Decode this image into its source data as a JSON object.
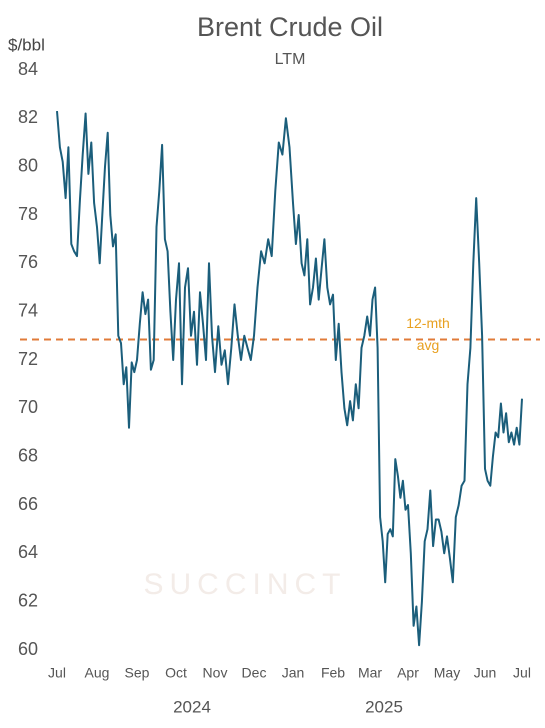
{
  "chart_data": {
    "type": "line",
    "title": "Brent Crude Oil",
    "subtitle": "LTM",
    "y_axis_label": "$/bbl",
    "watermark": "SUCCINCT",
    "categories": [
      "Jul",
      null,
      null,
      null,
      null,
      null,
      null,
      null,
      null,
      null,
      null,
      null,
      null,
      null,
      "Aug",
      null,
      null,
      null,
      null,
      null,
      null,
      null,
      null,
      null,
      null,
      null,
      null,
      null,
      null,
      "Sep",
      null,
      null,
      null,
      null,
      null,
      null,
      null,
      null,
      null,
      null,
      null,
      null,
      null,
      "Oct",
      null,
      null,
      null,
      null,
      null,
      null,
      null,
      null,
      null,
      null,
      null,
      null,
      "Nov",
      null,
      null,
      null,
      null,
      null,
      null,
      null,
      null,
      null,
      null,
      null,
      "Dec",
      null,
      null,
      null,
      null,
      null,
      null,
      null,
      null,
      null,
      null,
      "Jan",
      null,
      null,
      null,
      null,
      null,
      null,
      null,
      null,
      null,
      null,
      null,
      null,
      null,
      "Feb",
      null,
      null,
      null,
      null,
      null,
      null,
      null,
      null,
      null,
      null,
      null,
      null,
      "Mar",
      null,
      null,
      null,
      null,
      null,
      null,
      null,
      null,
      null,
      null,
      null,
      null,
      null,
      null,
      "Apr",
      null,
      null,
      null,
      null,
      null,
      null,
      null,
      null,
      null,
      null,
      null,
      null,
      null,
      "May",
      null,
      null,
      null,
      null,
      null,
      null,
      null,
      null,
      null,
      null,
      null,
      null,
      "Jun",
      null,
      null,
      null,
      null,
      null,
      null,
      null,
      null,
      null,
      null,
      null,
      null,
      null,
      "Jul"
    ],
    "year_labels": [
      "2024",
      "2025"
    ],
    "series": [
      {
        "name": "Brent",
        "color": "#1b5e7b",
        "values": [
          82.3,
          80.8,
          80.2,
          78.7,
          80.8,
          76.8,
          76.5,
          76.3,
          78.6,
          80.5,
          82.2,
          79.7,
          81.0,
          78.5,
          77.5,
          76.0,
          78.0,
          80.0,
          81.4,
          78.0,
          76.7,
          77.2,
          73.0,
          72.7,
          71.0,
          71.7,
          69.2,
          71.9,
          71.5,
          72.0,
          73.5,
          74.8,
          73.9,
          74.5,
          71.6,
          72.0,
          77.5,
          79.0,
          80.9,
          77.0,
          76.5,
          74.0,
          72.0,
          74.5,
          76.0,
          71.0,
          75.0,
          75.8,
          73.0,
          74.0,
          71.8,
          74.8,
          73.5,
          72.0,
          76.0,
          73.0,
          71.5,
          73.4,
          71.8,
          72.4,
          71.0,
          72.5,
          74.3,
          73.0,
          72.0,
          73.0,
          72.5,
          72.0,
          73.0,
          75.0,
          76.5,
          76.0,
          77.0,
          76.3,
          79.0,
          81.0,
          80.5,
          82.0,
          80.8,
          78.5,
          76.8,
          78.0,
          76.0,
          75.5,
          77.0,
          74.3,
          75.0,
          76.2,
          74.5,
          75.8,
          77.0,
          75.0,
          74.3,
          74.7,
          72.0,
          73.5,
          71.5,
          70.0,
          69.3,
          70.3,
          69.5,
          71.0,
          70.0,
          72.5,
          73.0,
          73.8,
          73.0,
          74.5,
          75.0,
          72.5,
          65.5,
          64.5,
          62.8,
          64.8,
          65.0,
          64.7,
          67.9,
          67.2,
          66.3,
          67.0,
          65.8,
          66.0,
          64.0,
          61.0,
          61.8,
          60.2,
          62.0,
          64.5,
          65.0,
          66.6,
          64.3,
          65.4,
          65.4,
          64.9,
          64.0,
          64.7,
          63.8,
          62.8,
          65.5,
          66.0,
          66.8,
          67.0,
          71.0,
          72.5,
          76.0,
          78.7,
          76.0,
          73.0,
          67.5,
          67.0,
          66.8,
          68.0,
          69.0,
          68.8,
          70.2,
          69.0,
          69.8,
          68.6,
          69.0,
          68.5,
          69.2,
          68.5,
          70.4
        ]
      }
    ],
    "reference_line": {
      "value": 72.85,
      "label": [
        "12-mth",
        "avg"
      ],
      "color": "#e07b39"
    },
    "ylim": [
      60,
      84
    ],
    "yticks": [
      60,
      62,
      64,
      66,
      68,
      70,
      72,
      74,
      76,
      78,
      80,
      82,
      84
    ],
    "grid": false
  }
}
